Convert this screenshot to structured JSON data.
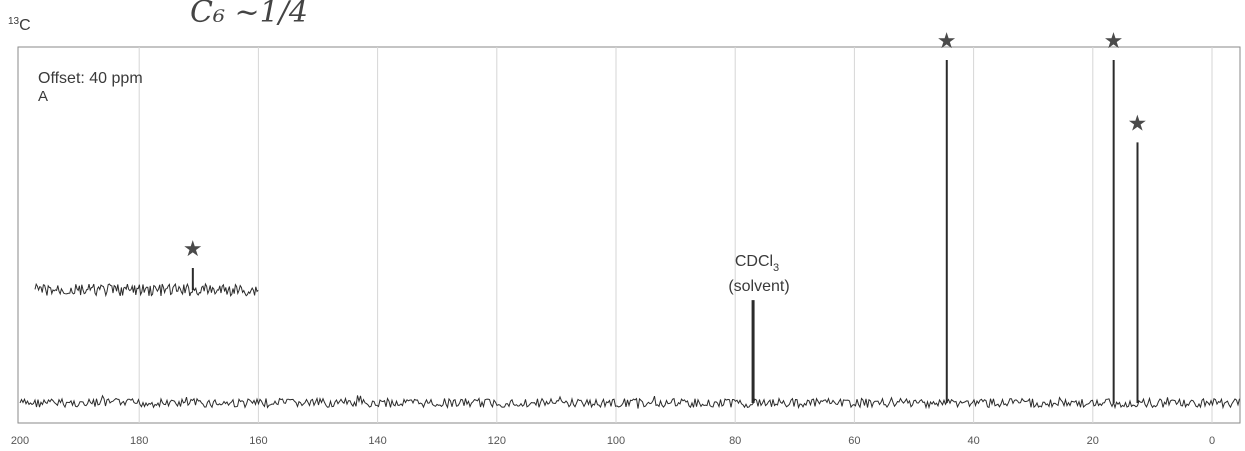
{
  "chart_data": {
    "type": "line",
    "nucleus": {
      "mass": "13",
      "symbol": "C"
    },
    "header_scribble": "C₆ ~1/4",
    "offset_label": "Offset: 40 ppm",
    "panel_label": "A",
    "x_axis": {
      "xlim": [
        200,
        0
      ],
      "ticks": [
        200,
        180,
        160,
        140,
        120,
        100,
        80,
        60,
        40,
        20,
        0
      ],
      "tick_labels": [
        "200",
        "180",
        "160",
        "140",
        "120",
        "100",
        "80",
        "60",
        "40",
        "20",
        "0"
      ],
      "xlabel": ""
    },
    "grid": true,
    "solvent_annotation": {
      "line1": "CDCl",
      "subscript": "3",
      "line2": "(solvent)"
    },
    "inset_region": {
      "x_start": 200,
      "x_end": 160,
      "description_as_shown": "offset trace"
    },
    "peaks": [
      {
        "ppm": 77.0,
        "height": 0.3,
        "label": "CDCl3",
        "marked": false,
        "trace": "main"
      },
      {
        "ppm": 44.5,
        "height": 1.0,
        "label": "",
        "marked": true,
        "trace": "main"
      },
      {
        "ppm": 16.5,
        "height": 1.0,
        "label": "",
        "marked": true,
        "trace": "main"
      },
      {
        "ppm": 12.5,
        "height": 0.76,
        "label": "",
        "marked": true,
        "trace": "main"
      },
      {
        "ppm": 171.0,
        "height": 0.05,
        "label": "",
        "marked": true,
        "trace": "offset"
      }
    ],
    "star_marks": [
      "★",
      "★",
      "★",
      "★"
    ]
  },
  "colors": {
    "trace": "#2b2b2b",
    "grid": "#d6d6d6",
    "frame": "#8a8a8a",
    "ink": "#4a4a4a"
  }
}
